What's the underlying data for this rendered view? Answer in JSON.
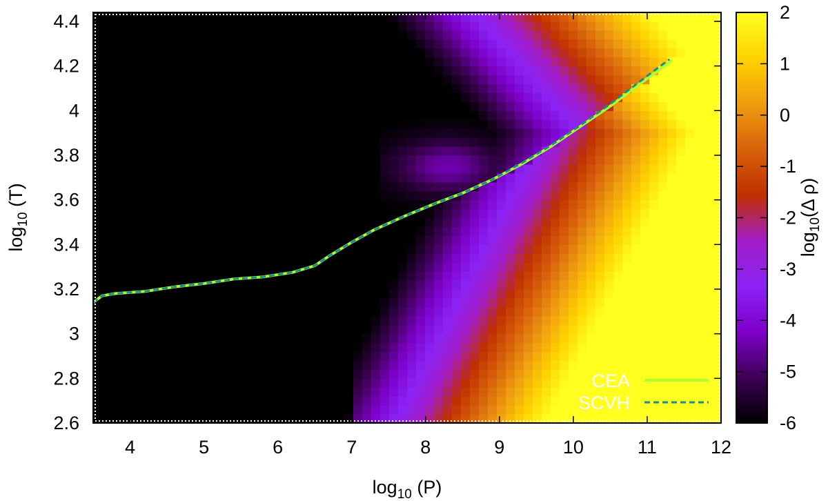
{
  "chart_data": {
    "type": "heatmap",
    "title": "",
    "xlabel": {
      "prefix": "log",
      "sub": "10",
      "suffix": " (P)"
    },
    "ylabel": {
      "prefix": "log",
      "sub": "10",
      "suffix": " (T)"
    },
    "colorbar_label": {
      "prefix": "log",
      "sub": "10",
      "suffix": "(Δ ρ)"
    },
    "xlim": [
      3.5,
      12
    ],
    "ylim": [
      2.6,
      4.44
    ],
    "clim": [
      -6,
      2
    ],
    "xticks": [
      4,
      5,
      6,
      7,
      8,
      9,
      10,
      11,
      12
    ],
    "xtick_labels": [
      "4",
      "5",
      "6",
      "7",
      "8",
      "9",
      "10",
      "11",
      "12"
    ],
    "yticks": [
      2.6,
      2.8,
      3.0,
      3.2,
      3.4,
      3.6,
      3.8,
      4.0,
      4.2,
      4.4
    ],
    "ytick_labels": [
      "2.6",
      "2.8",
      "3",
      "3.2",
      "3.4",
      "3.6",
      "3.8",
      "4",
      "4.2",
      "4.4"
    ],
    "cticks": [
      -6,
      -5,
      -4,
      -3,
      -2,
      -1,
      0,
      1,
      2
    ],
    "ctick_labels": [
      "-6",
      "-5",
      "-4",
      "-3",
      "-2",
      "-1",
      "0",
      "1",
      "2"
    ],
    "colormap": [
      "#000000",
      "#3d0054",
      "#7d00c9",
      "#8a23f5",
      "#a21cc7",
      "#c03000",
      "#d8620b",
      "#ee9d10",
      "#ffd200",
      "#ffff20"
    ],
    "legend_position": "bottom-right",
    "series": [
      {
        "name": "CEA",
        "color": "#adff2f",
        "style": "solid",
        "x": [
          3.5,
          3.62,
          3.8,
          4.2,
          4.6,
          5.0,
          5.4,
          5.8,
          6.2,
          6.5,
          6.7,
          7.0,
          7.3,
          7.7,
          8.1,
          8.5,
          8.9,
          9.3,
          9.7,
          10.1,
          10.5,
          10.9,
          11.34
        ],
        "y": [
          3.14,
          3.17,
          3.18,
          3.19,
          3.21,
          3.225,
          3.245,
          3.255,
          3.275,
          3.305,
          3.35,
          3.41,
          3.465,
          3.525,
          3.58,
          3.63,
          3.69,
          3.76,
          3.84,
          3.93,
          4.02,
          4.12,
          4.225
        ]
      },
      {
        "name": "SCVH",
        "color": "#1a8c8c",
        "style": "dashed",
        "x": [
          3.5,
          3.62,
          3.8,
          4.2,
          4.6,
          5.0,
          5.4,
          5.8,
          6.2,
          6.5,
          6.7,
          7.0,
          7.3,
          7.7,
          8.1,
          8.5,
          8.9,
          9.3,
          9.7,
          10.1,
          10.5,
          10.9,
          11.3
        ],
        "y": [
          3.14,
          3.17,
          3.18,
          3.19,
          3.21,
          3.225,
          3.245,
          3.255,
          3.275,
          3.305,
          3.35,
          3.41,
          3.465,
          3.525,
          3.58,
          3.63,
          3.69,
          3.765,
          3.845,
          3.935,
          4.03,
          4.13,
          4.23
        ]
      }
    ]
  }
}
